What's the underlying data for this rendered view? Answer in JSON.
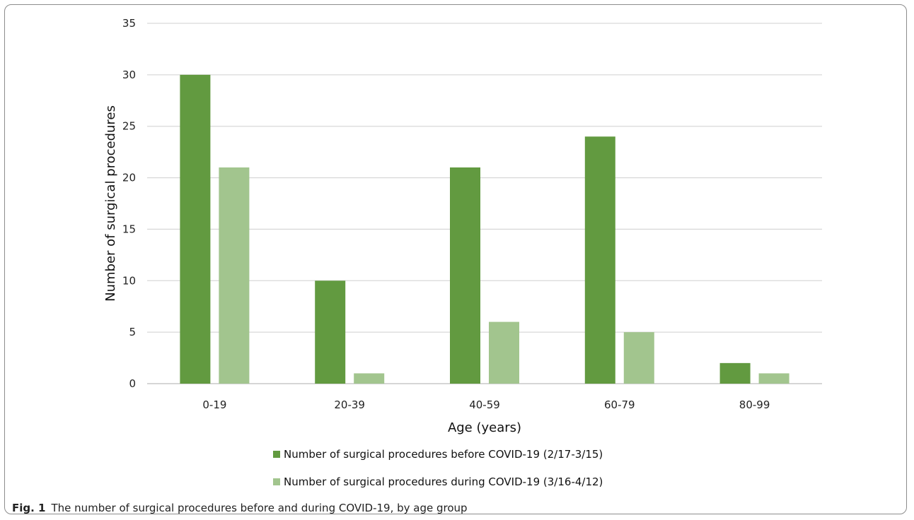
{
  "chart_data": {
    "type": "bar",
    "categories": [
      "0-19",
      "20-39",
      "40-59",
      "60-79",
      "80-99"
    ],
    "series": [
      {
        "name": "Number of surgical procedures before COVID-19 (2/17-3/15)",
        "values": [
          30,
          10,
          21,
          24,
          2
        ],
        "color": "#629a40"
      },
      {
        "name": "Number of surgical procedures during COVID-19 (3/16-4/12)",
        "values": [
          21,
          1,
          6,
          5,
          1
        ],
        "color": "#a2c58e"
      }
    ],
    "xlabel": "Age (years)",
    "ylabel": "Number of surgical procedures",
    "ylim": [
      0,
      35
    ],
    "yticks": [
      0,
      5,
      10,
      15,
      20,
      25,
      30,
      35
    ],
    "grid": true,
    "legend": "bottom"
  },
  "caption": {
    "label": "Fig. 1",
    "text": "The number of surgical procedures before and during COVID-19, by age group"
  }
}
